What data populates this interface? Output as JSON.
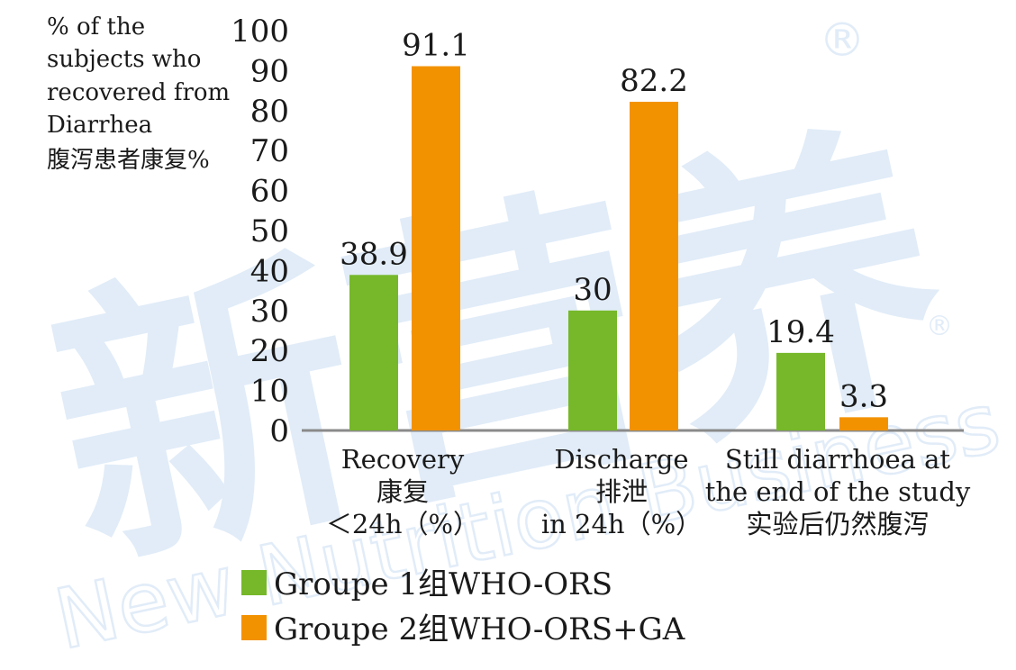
{
  "chart_data": {
    "type": "bar",
    "ylabel": "% of the\nsubjects who\nrecovered from\nDiarrhea\n腹泻患者康复%",
    "ylim": [
      0,
      100
    ],
    "yticks": [
      "0",
      "10",
      "20",
      "30",
      "40",
      "50",
      "60",
      "70",
      "80",
      "90",
      "100"
    ],
    "categories": [
      "Recovery\n康复\n＜24h（%）",
      "Discharge\n排泄\nin 24h（%）",
      "Still diarrhoea at\nthe end of the study\n实验后仍然腹泻"
    ],
    "series": [
      {
        "name": "Groupe 1组WHO-ORS",
        "color": "#76b82a",
        "values": [
          38.9,
          30,
          19.4
        ],
        "labels": [
          "38.9",
          "30",
          "19.4"
        ]
      },
      {
        "name": "Groupe 2组WHO-ORS+GA",
        "color": "#f39200",
        "values": [
          91.1,
          82.2,
          3.3
        ],
        "labels": [
          "91.1",
          "82.2",
          "3.3"
        ]
      }
    ],
    "grid": false,
    "legend_position": "bottom-left"
  },
  "watermark": {
    "logo_text": "新营养",
    "brand_text": "New Nutrition Business",
    "registered_mark": "®"
  }
}
